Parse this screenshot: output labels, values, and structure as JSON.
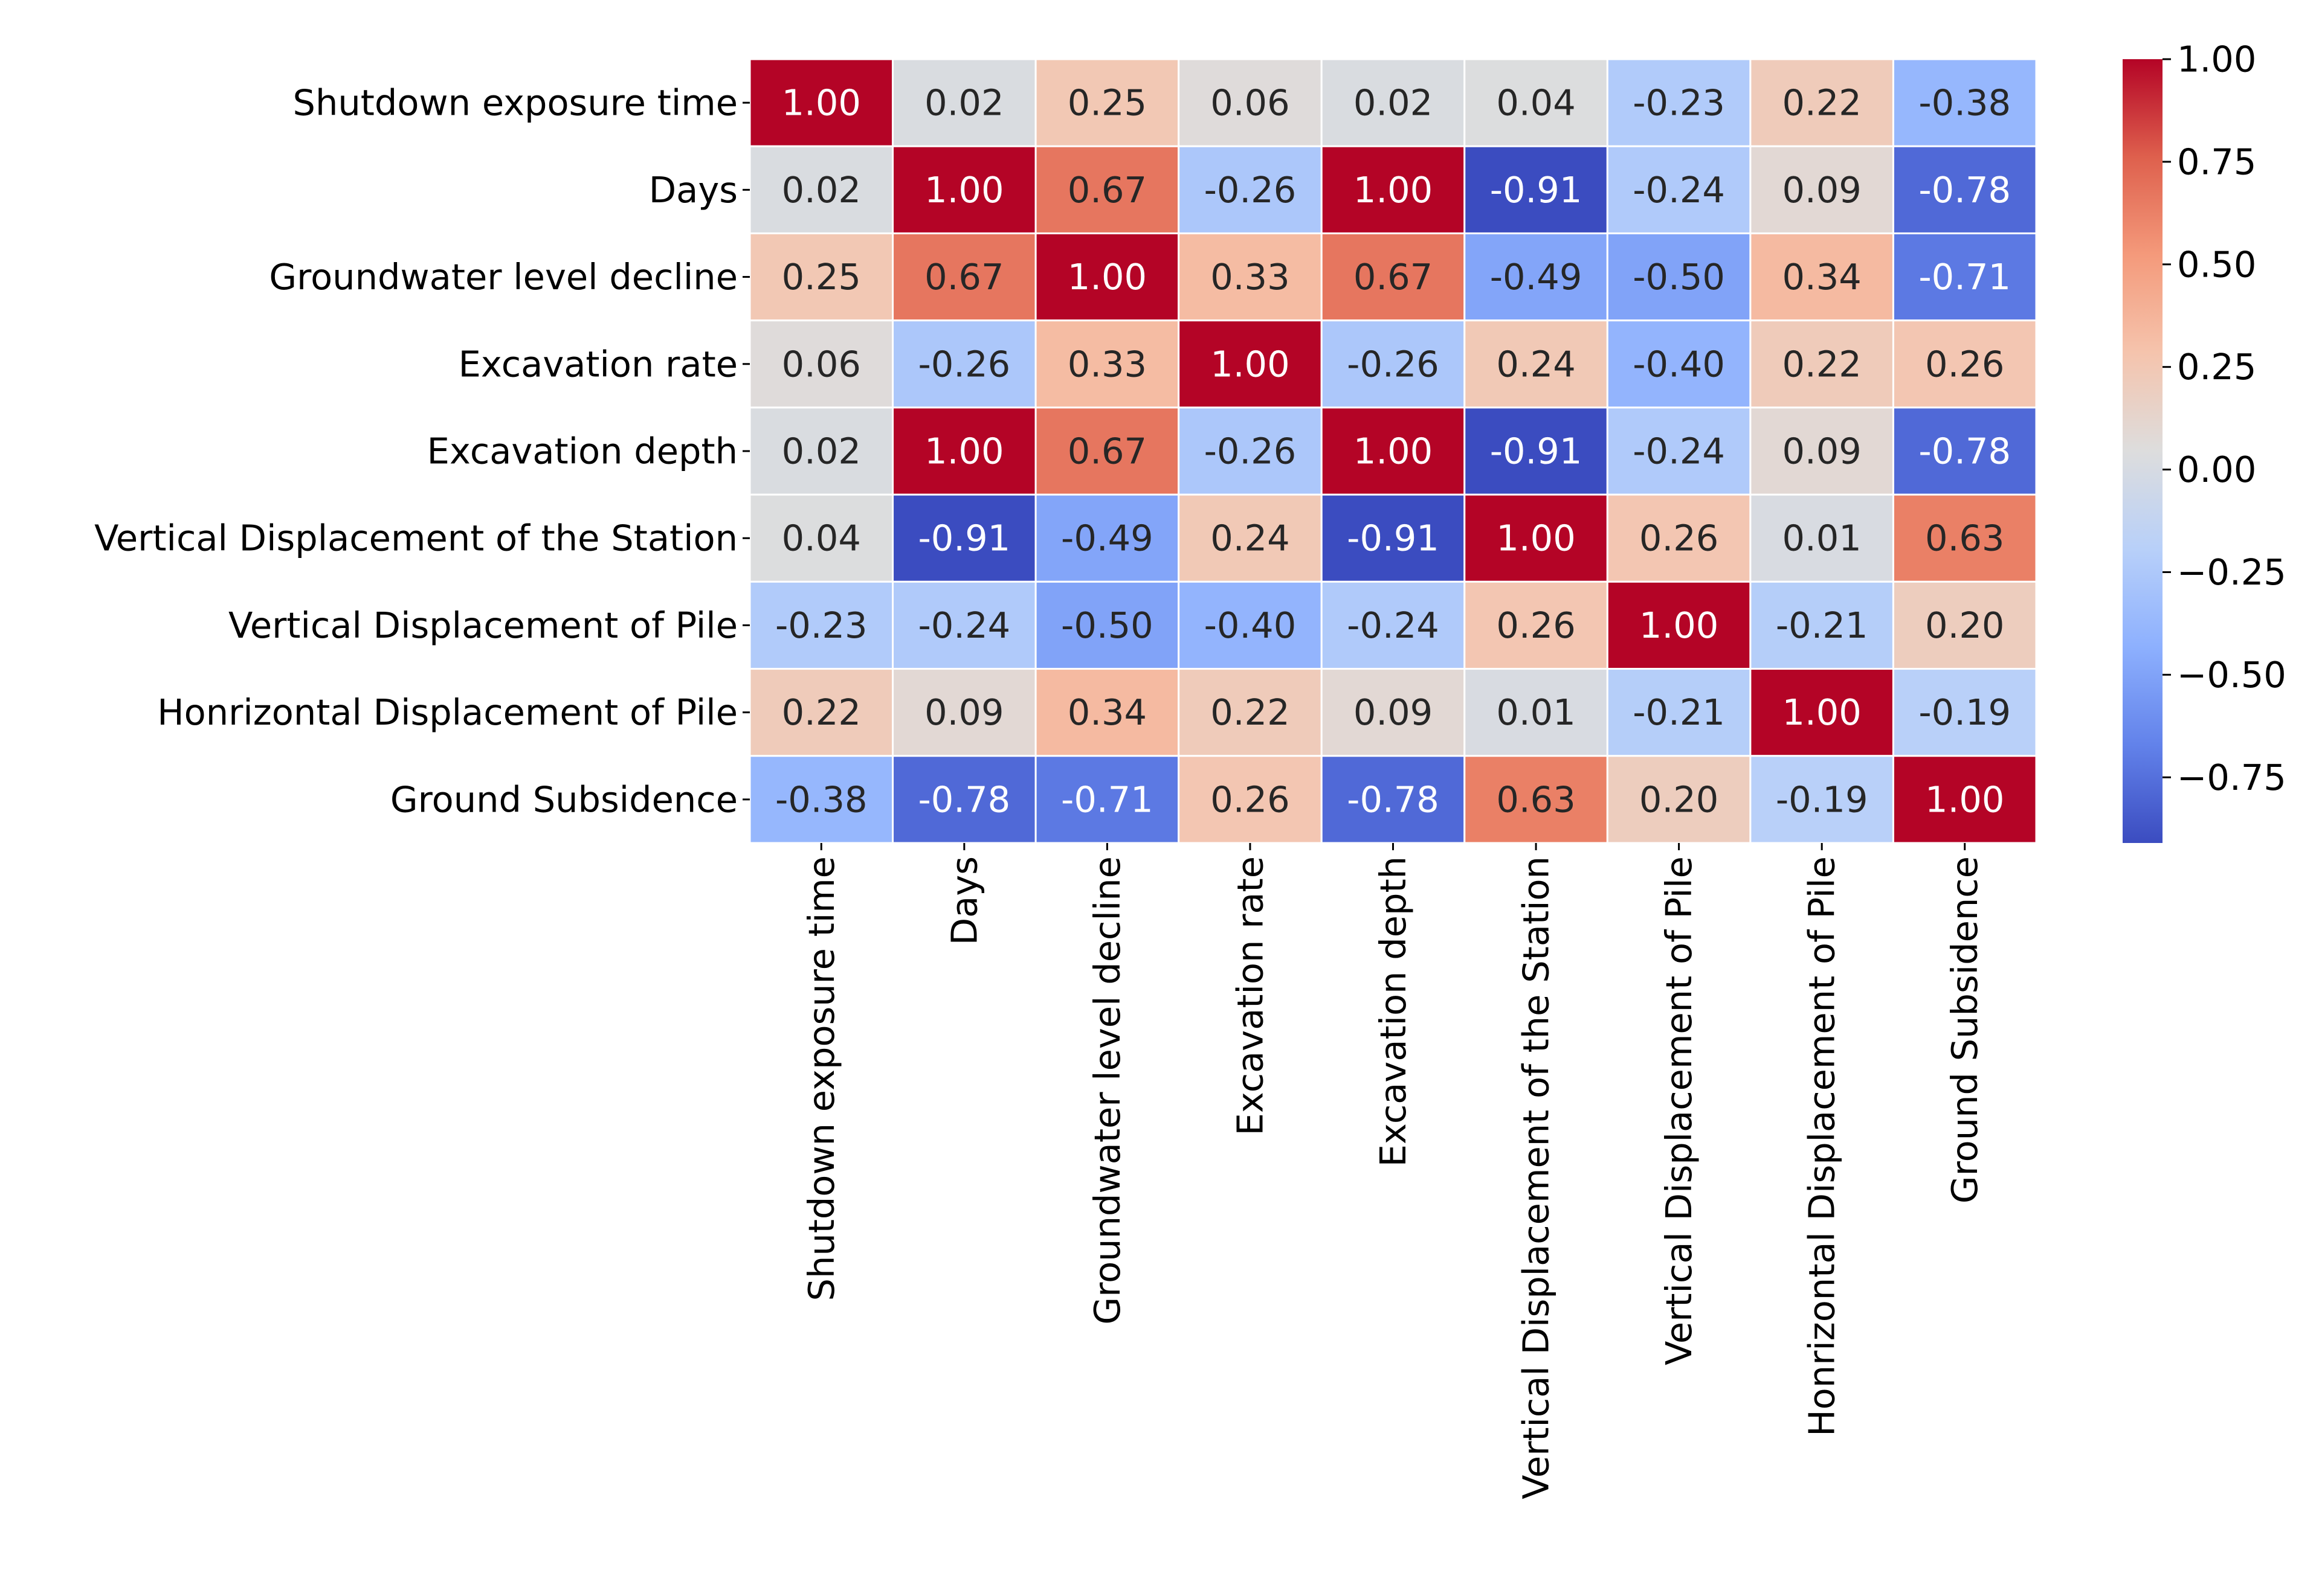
{
  "chart_data": {
    "type": "heatmap",
    "title": "",
    "xlabel": "",
    "ylabel": "",
    "colormap": "coolwarm",
    "vmin": -0.91,
    "vmax": 1.0,
    "labels": [
      "Shutdown exposure time",
      "Days",
      "Groundwater level decline",
      "Excavation rate",
      "Excavation depth",
      "Vertical Displacement of the Station",
      "Vertical Displacement of Pile",
      "Honrizontal Displacement of Pile",
      "Ground Subsidence"
    ],
    "matrix": [
      [
        1.0,
        0.02,
        0.25,
        0.06,
        0.02,
        0.04,
        -0.23,
        0.22,
        -0.38
      ],
      [
        0.02,
        1.0,
        0.67,
        -0.26,
        1.0,
        -0.91,
        -0.24,
        0.09,
        -0.78
      ],
      [
        0.25,
        0.67,
        1.0,
        0.33,
        0.67,
        -0.49,
        -0.5,
        0.34,
        -0.71
      ],
      [
        0.06,
        -0.26,
        0.33,
        1.0,
        -0.26,
        0.24,
        -0.4,
        0.22,
        0.26
      ],
      [
        0.02,
        1.0,
        0.67,
        -0.26,
        1.0,
        -0.91,
        -0.24,
        0.09,
        -0.78
      ],
      [
        0.04,
        -0.91,
        -0.49,
        0.24,
        -0.91,
        1.0,
        0.26,
        0.01,
        0.63
      ],
      [
        -0.23,
        -0.24,
        -0.5,
        -0.4,
        -0.24,
        0.26,
        1.0,
        -0.21,
        0.2
      ],
      [
        0.22,
        0.09,
        0.34,
        0.22,
        0.09,
        0.01,
        -0.21,
        1.0,
        -0.19
      ],
      [
        -0.38,
        -0.78,
        -0.71,
        0.26,
        -0.78,
        0.63,
        0.2,
        -0.19,
        1.0
      ]
    ],
    "colorbar_ticks": [
      1.0,
      0.75,
      0.5,
      0.25,
      0.0,
      -0.25,
      -0.5,
      -0.75
    ],
    "colorbar_tick_labels": [
      "1.00",
      "0.75",
      "0.50",
      "0.25",
      "0.00",
      "−0.25",
      "−0.50",
      "−0.75"
    ],
    "annotation_format": "0.00"
  }
}
